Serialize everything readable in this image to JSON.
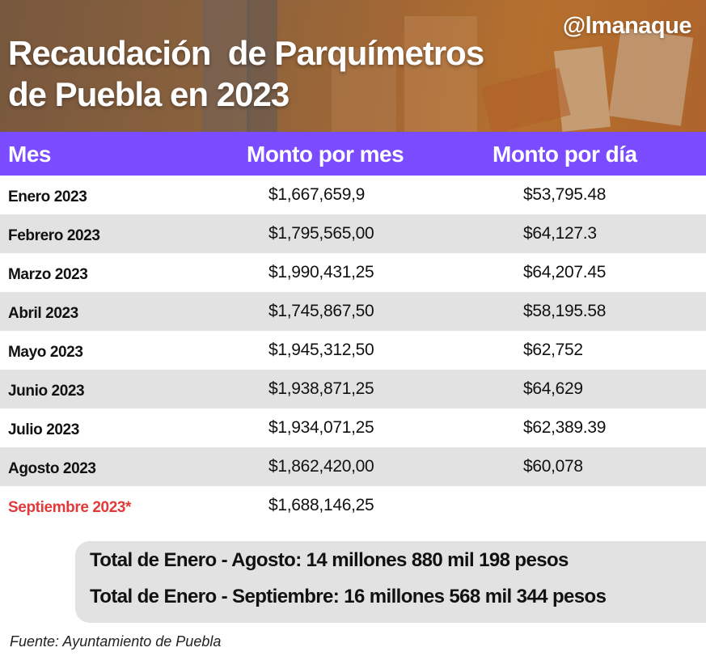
{
  "header": {
    "title_line1": "Recaudación  de Parquímetros",
    "title_line2": "de Puebla en 2023",
    "handle": "@lmanaque"
  },
  "colors": {
    "header_bar": "#7a4bff",
    "row_alt": "#e2e2e2",
    "highlight": "#e03a3a"
  },
  "chart_data": {
    "type": "table",
    "title": "Recaudación de Parquímetros de Puebla en 2023",
    "columns": [
      "Mes",
      "Monto por mes",
      "Monto por día"
    ],
    "rows": [
      {
        "mes": "Enero 2023",
        "monto_mes": "$1,667,659,9",
        "monto_dia": "$53,795.48"
      },
      {
        "mes": "Febrero 2023",
        "monto_mes": "$1,795,565,00",
        "monto_dia": "$64,127.3"
      },
      {
        "mes": "Marzo 2023",
        "monto_mes": "$1,990,431,25",
        "monto_dia": "$64,207.45"
      },
      {
        "mes": "Abril 2023",
        "monto_mes": "$1,745,867,50",
        "monto_dia": "$58,195.58"
      },
      {
        "mes": "Mayo 2023",
        "monto_mes": "$1,945,312,50",
        "monto_dia": "$62,752"
      },
      {
        "mes": "Junio 2023",
        "monto_mes": "$1,938,871,25",
        "monto_dia": "$64,629"
      },
      {
        "mes": "Julio 2023",
        "monto_mes": "$1,934,071,25",
        "monto_dia": "$62,389.39"
      },
      {
        "mes": "Agosto 2023",
        "monto_mes": "$1,862,420,00",
        "monto_dia": "$60,078"
      },
      {
        "mes": "Septiembre 2023*",
        "monto_mes": "$1,688,146,25",
        "monto_dia": "",
        "highlight": true
      }
    ]
  },
  "totals": {
    "line1": "Total de Enero - Agosto: 14 millones 880 mil 198 pesos",
    "line2": "Total de Enero - Septiembre: 16 millones 568 mil 344 pesos"
  },
  "source": "Fuente: Ayuntamiento de Puebla"
}
